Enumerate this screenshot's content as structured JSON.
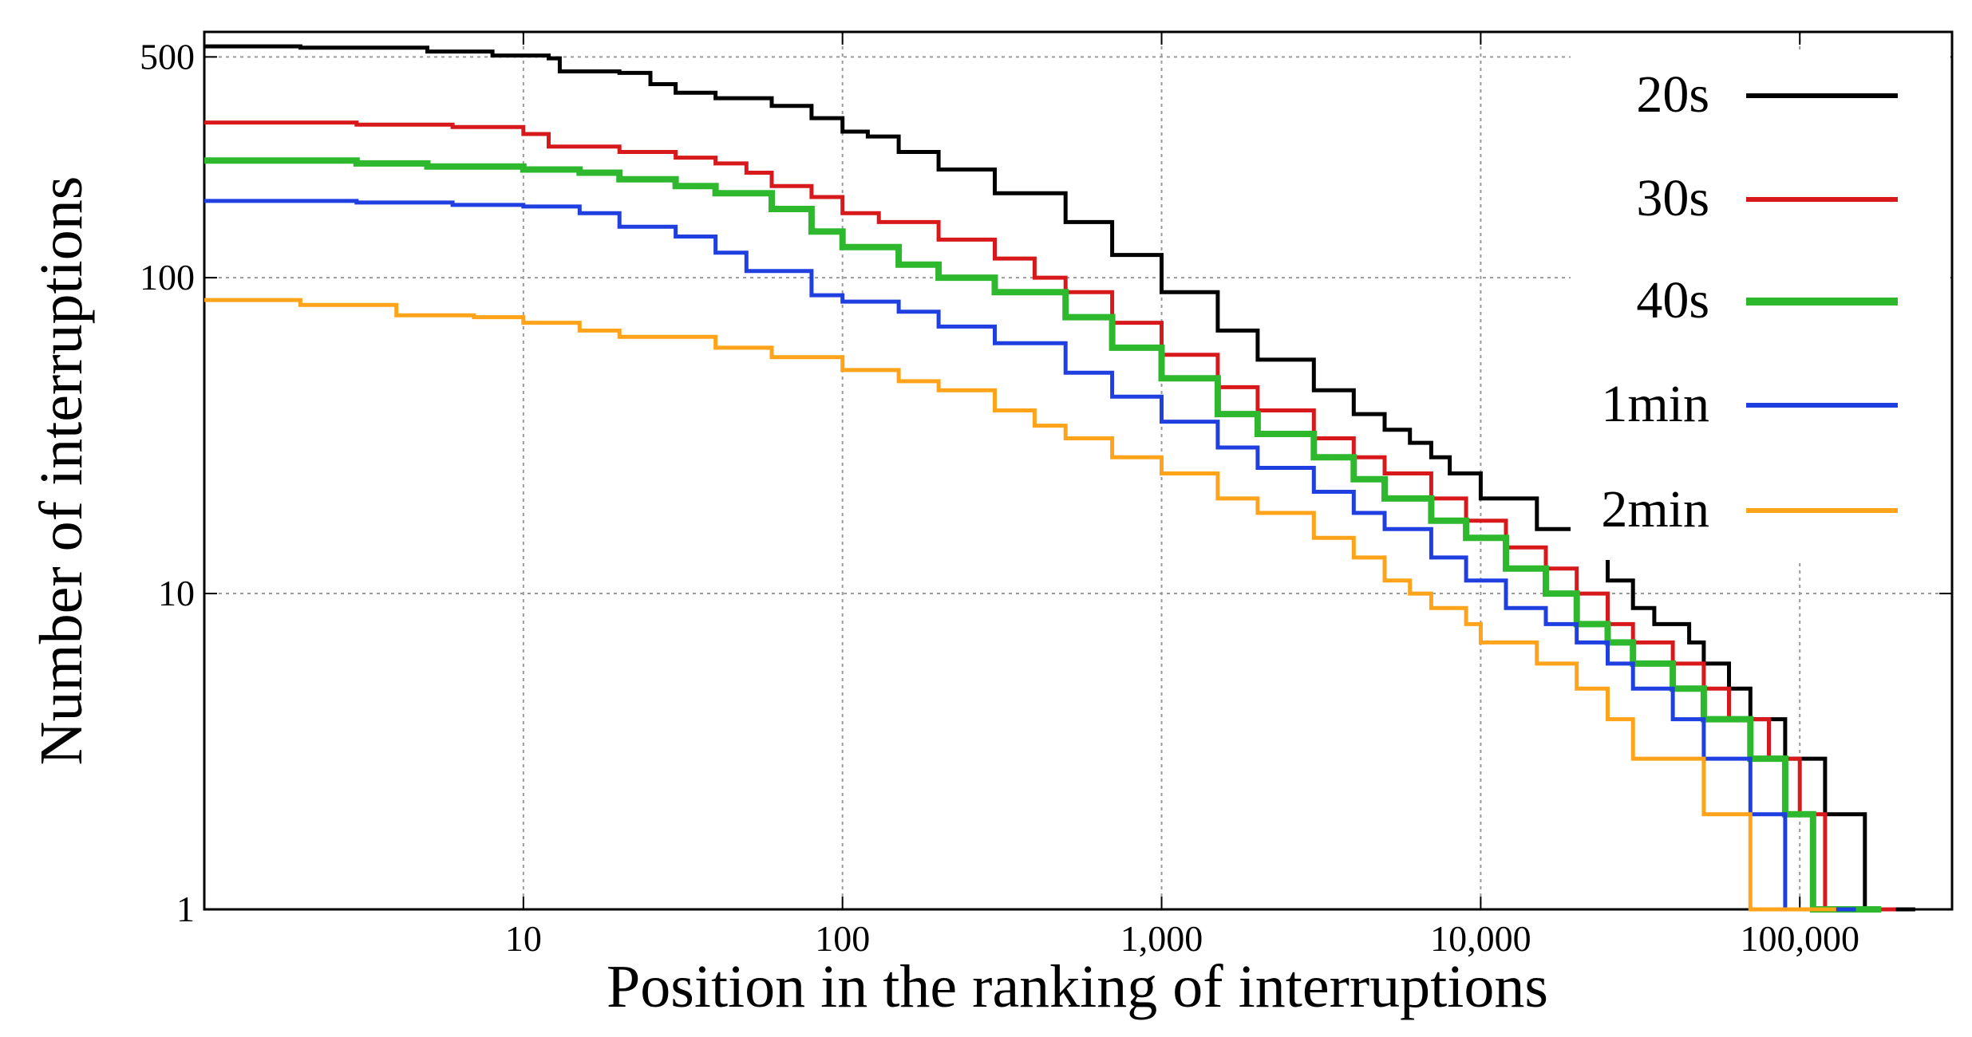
{
  "chart_data": {
    "type": "line",
    "title": "",
    "xlabel": "Position in the ranking of interruptions",
    "ylabel": "Number of interruptions",
    "xscale": "log",
    "yscale": "log",
    "xlim": [
      1,
      300000
    ],
    "ylim": [
      1,
      600
    ],
    "grid": true,
    "legend_position": "top-right",
    "x_ticks": [
      {
        "value": 10,
        "label": "10"
      },
      {
        "value": 100,
        "label": "100"
      },
      {
        "value": 1000,
        "label": "1,000"
      },
      {
        "value": 10000,
        "label": "10,000"
      },
      {
        "value": 100000,
        "label": "100,000"
      }
    ],
    "y_ticks": [
      {
        "value": 1,
        "label": "1"
      },
      {
        "value": 10,
        "label": "10"
      },
      {
        "value": 100,
        "label": "100"
      },
      {
        "value": 500,
        "label": "500"
      }
    ],
    "series": [
      {
        "name": "20s",
        "color": "#000000",
        "step": true,
        "points": [
          [
            1,
            540
          ],
          [
            2,
            535
          ],
          [
            5,
            520
          ],
          [
            8,
            505
          ],
          [
            12,
            495
          ],
          [
            13,
            450
          ],
          [
            20,
            445
          ],
          [
            25,
            410
          ],
          [
            30,
            385
          ],
          [
            40,
            370
          ],
          [
            60,
            350
          ],
          [
            80,
            320
          ],
          [
            100,
            290
          ],
          [
            120,
            280
          ],
          [
            150,
            250
          ],
          [
            200,
            220
          ],
          [
            300,
            185
          ],
          [
            500,
            150
          ],
          [
            700,
            118
          ],
          [
            1000,
            90
          ],
          [
            1500,
            68
          ],
          [
            2000,
            55
          ],
          [
            3000,
            44
          ],
          [
            4000,
            37
          ],
          [
            5000,
            33
          ],
          [
            6000,
            30
          ],
          [
            7000,
            27
          ],
          [
            8000,
            24
          ],
          [
            10000,
            20
          ],
          [
            15000,
            16
          ],
          [
            20000,
            13
          ],
          [
            25000,
            11
          ],
          [
            30000,
            9
          ],
          [
            35000,
            8
          ],
          [
            45000,
            7
          ],
          [
            50000,
            6
          ],
          [
            60000,
            5
          ],
          [
            70000,
            4
          ],
          [
            90000,
            3
          ],
          [
            120000,
            2
          ],
          [
            160000,
            1
          ],
          [
            230000,
            1
          ]
        ]
      },
      {
        "name": "30s",
        "color": "#d7191c",
        "step": true,
        "points": [
          [
            1,
            310
          ],
          [
            3,
            305
          ],
          [
            6,
            300
          ],
          [
            10,
            285
          ],
          [
            12,
            260
          ],
          [
            20,
            250
          ],
          [
            30,
            240
          ],
          [
            40,
            230
          ],
          [
            50,
            215
          ],
          [
            60,
            195
          ],
          [
            80,
            180
          ],
          [
            100,
            160
          ],
          [
            130,
            150
          ],
          [
            200,
            132
          ],
          [
            300,
            115
          ],
          [
            400,
            100
          ],
          [
            500,
            90
          ],
          [
            700,
            72
          ],
          [
            1000,
            57
          ],
          [
            1500,
            45
          ],
          [
            2000,
            38
          ],
          [
            3000,
            31
          ],
          [
            4000,
            27
          ],
          [
            5000,
            24
          ],
          [
            7000,
            20
          ],
          [
            9000,
            17
          ],
          [
            12000,
            14
          ],
          [
            16000,
            12
          ],
          [
            20000,
            10
          ],
          [
            25000,
            8
          ],
          [
            30000,
            7
          ],
          [
            40000,
            6
          ],
          [
            50000,
            5
          ],
          [
            60000,
            4
          ],
          [
            80000,
            3
          ],
          [
            100000,
            2
          ],
          [
            120000,
            1
          ],
          [
            200000,
            1
          ]
        ]
      },
      {
        "name": "40s",
        "color": "#2eb82e",
        "step": true,
        "points": [
          [
            1,
            235
          ],
          [
            3,
            230
          ],
          [
            5,
            225
          ],
          [
            10,
            220
          ],
          [
            15,
            215
          ],
          [
            20,
            205
          ],
          [
            30,
            195
          ],
          [
            40,
            185
          ],
          [
            60,
            165
          ],
          [
            80,
            140
          ],
          [
            100,
            125
          ],
          [
            150,
            110
          ],
          [
            200,
            100
          ],
          [
            300,
            90
          ],
          [
            500,
            75
          ],
          [
            700,
            60
          ],
          [
            1000,
            48
          ],
          [
            1500,
            37
          ],
          [
            2000,
            32
          ],
          [
            3000,
            27
          ],
          [
            4000,
            23
          ],
          [
            5000,
            20
          ],
          [
            7000,
            17
          ],
          [
            9000,
            15
          ],
          [
            12000,
            12
          ],
          [
            16000,
            10
          ],
          [
            20000,
            8
          ],
          [
            25000,
            7
          ],
          [
            30000,
            6
          ],
          [
            40000,
            5
          ],
          [
            50000,
            4
          ],
          [
            70000,
            3
          ],
          [
            90000,
            2
          ],
          [
            110000,
            1
          ],
          [
            180000,
            1
          ]
        ]
      },
      {
        "name": "1min",
        "color": "#1f3fe0",
        "step": true,
        "points": [
          [
            1,
            175
          ],
          [
            3,
            173
          ],
          [
            6,
            170
          ],
          [
            10,
            168
          ],
          [
            15,
            160
          ],
          [
            20,
            145
          ],
          [
            30,
            135
          ],
          [
            40,
            120
          ],
          [
            50,
            105
          ],
          [
            80,
            88
          ],
          [
            100,
            84
          ],
          [
            150,
            78
          ],
          [
            200,
            70
          ],
          [
            300,
            62
          ],
          [
            500,
            50
          ],
          [
            700,
            42
          ],
          [
            1000,
            35
          ],
          [
            1500,
            29
          ],
          [
            2000,
            25
          ],
          [
            3000,
            21
          ],
          [
            4000,
            18
          ],
          [
            5000,
            16
          ],
          [
            7000,
            13
          ],
          [
            9000,
            11
          ],
          [
            12000,
            9
          ],
          [
            16000,
            8
          ],
          [
            20000,
            7
          ],
          [
            25000,
            6
          ],
          [
            30000,
            5
          ],
          [
            40000,
            4
          ],
          [
            50000,
            3
          ],
          [
            70000,
            2
          ],
          [
            90000,
            1
          ],
          [
            150000,
            1
          ]
        ]
      },
      {
        "name": "2min",
        "color": "#ffa31a",
        "step": true,
        "points": [
          [
            1,
            85
          ],
          [
            2,
            82
          ],
          [
            4,
            76
          ],
          [
            7,
            75
          ],
          [
            10,
            72
          ],
          [
            15,
            68
          ],
          [
            20,
            65
          ],
          [
            40,
            60
          ],
          [
            60,
            56
          ],
          [
            100,
            51
          ],
          [
            150,
            47
          ],
          [
            200,
            44
          ],
          [
            300,
            38
          ],
          [
            400,
            34
          ],
          [
            500,
            31
          ],
          [
            700,
            27
          ],
          [
            1000,
            24
          ],
          [
            1500,
            20
          ],
          [
            2000,
            18
          ],
          [
            3000,
            15
          ],
          [
            4000,
            13
          ],
          [
            5000,
            11
          ],
          [
            6000,
            10
          ],
          [
            7000,
            9
          ],
          [
            9000,
            8
          ],
          [
            10000,
            7
          ],
          [
            15000,
            6
          ],
          [
            20000,
            5
          ],
          [
            25000,
            4
          ],
          [
            30000,
            3
          ],
          [
            50000,
            2
          ],
          [
            70000,
            1
          ],
          [
            130000,
            1
          ]
        ]
      }
    ]
  }
}
